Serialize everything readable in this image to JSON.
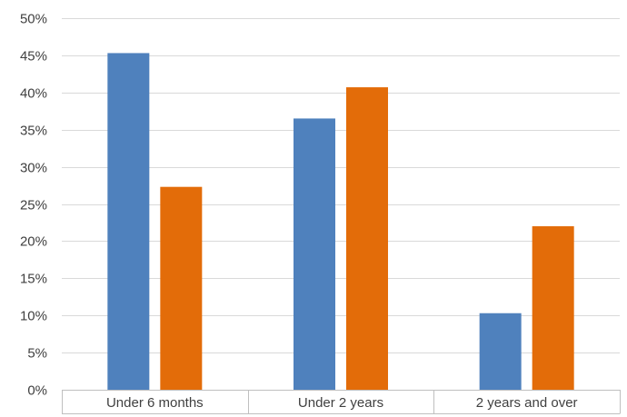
{
  "chart_data": {
    "type": "bar",
    "categories": [
      "Under 6 months",
      "Under 2 years",
      "2 years and over"
    ],
    "series": [
      {
        "values": [
          45.3,
          36.5,
          10.3
        ]
      },
      {
        "values": [
          27.3,
          40.7,
          22.0
        ]
      }
    ],
    "ylim": [
      0,
      50
    ],
    "yticks": [
      0,
      5,
      10,
      15,
      20,
      25,
      30,
      35,
      40,
      45,
      50
    ],
    "ytick_labels": [
      "0%",
      "5%",
      "10%",
      "15%",
      "20%",
      "25%",
      "30%",
      "35%",
      "40%",
      "45%",
      "50%"
    ],
    "grid": true,
    "legend": "none"
  },
  "colors": {
    "series": [
      "#4f81bd",
      "#e36c09"
    ],
    "grid": "#d9d9d9",
    "axis_box": "#bfbfbf",
    "text": "#404040"
  }
}
